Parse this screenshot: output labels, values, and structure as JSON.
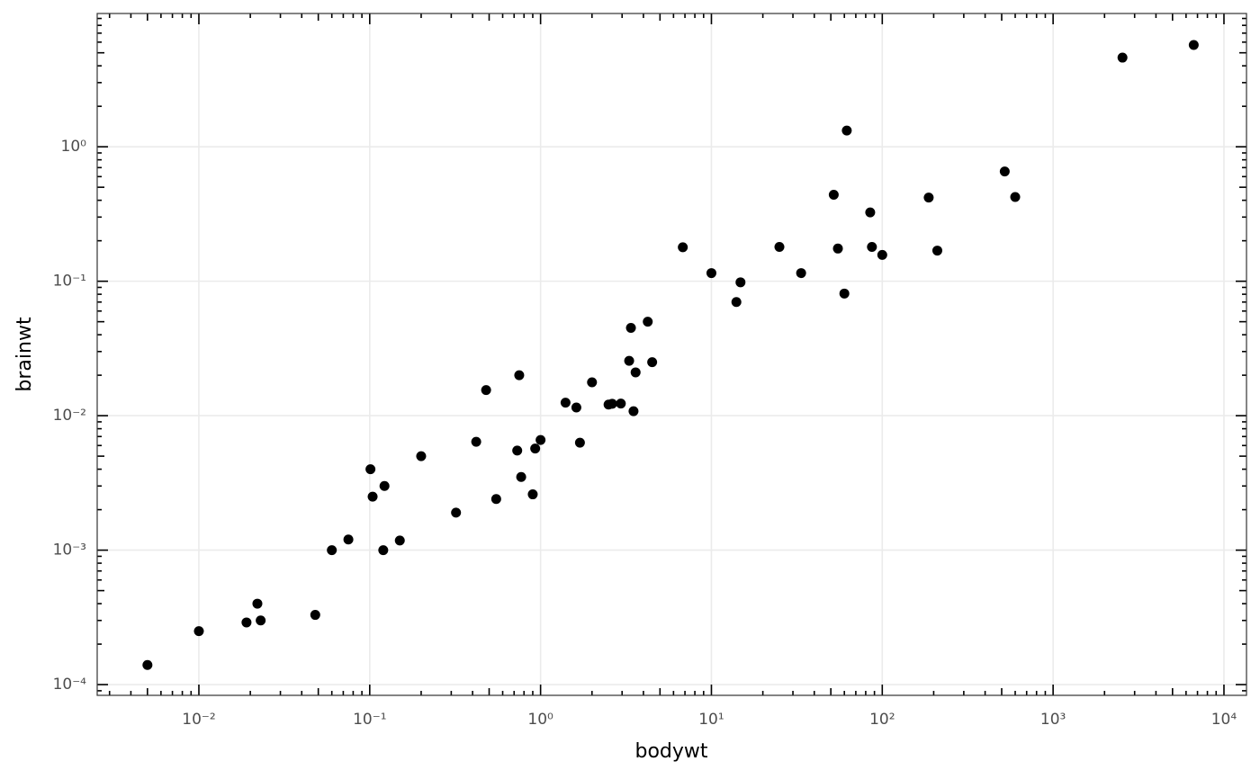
{
  "chart_data": {
    "type": "scatter",
    "x_label": "bodywt",
    "y_label": "brainwt",
    "log_x": true,
    "log_y": true,
    "grid": true,
    "color": "#000000",
    "xlim": [
      0.00254,
      13550
    ],
    "ylim": [
      8.32e-05,
      9.8
    ],
    "xticks": [
      {
        "value": 0.01,
        "label": "10⁻²"
      },
      {
        "value": 0.1,
        "label": "10⁻¹"
      },
      {
        "value": 1,
        "label": "10⁰"
      },
      {
        "value": 10,
        "label": "10¹"
      },
      {
        "value": 100,
        "label": "10²"
      },
      {
        "value": 1000,
        "label": "10³"
      },
      {
        "value": 10000,
        "label": "10⁴"
      }
    ],
    "yticks": [
      {
        "value": 0.0001,
        "label": "10⁻⁴"
      },
      {
        "value": 0.001,
        "label": "10⁻³"
      },
      {
        "value": 0.01,
        "label": "10⁻²"
      },
      {
        "value": 0.1,
        "label": "10⁻¹"
      },
      {
        "value": 1,
        "label": "10⁰"
      }
    ],
    "x_minor_ticks": [
      0.003,
      0.004,
      0.005,
      0.006,
      0.007,
      0.008,
      0.009,
      0.02,
      0.03,
      0.04,
      0.05,
      0.06,
      0.07,
      0.08,
      0.09,
      0.2,
      0.3,
      0.4,
      0.5,
      0.6,
      0.7,
      0.8,
      0.9,
      2,
      3,
      4,
      5,
      6,
      7,
      8,
      9,
      20,
      30,
      40,
      50,
      60,
      70,
      80,
      90,
      200,
      300,
      400,
      500,
      600,
      700,
      800,
      900,
      2000,
      3000,
      4000,
      5000,
      6000,
      7000,
      8000,
      9000
    ],
    "y_minor_ticks": [
      9e-05,
      0.0002,
      0.0003,
      0.0004,
      0.0005,
      0.0006,
      0.0007,
      0.0008,
      0.0009,
      0.002,
      0.003,
      0.004,
      0.005,
      0.006,
      0.007,
      0.008,
      0.009,
      0.02,
      0.03,
      0.04,
      0.05,
      0.06,
      0.07,
      0.08,
      0.09,
      0.2,
      0.3,
      0.4,
      0.5,
      0.6,
      0.7,
      0.8,
      0.9,
      2,
      3,
      4,
      5,
      6,
      7,
      8,
      9
    ],
    "x": [
      0.005,
      0.01,
      0.019,
      0.022,
      0.023,
      0.048,
      0.06,
      0.075,
      0.101,
      0.104,
      0.12,
      0.122,
      0.15,
      0.2,
      0.32,
      0.42,
      0.48,
      0.55,
      0.73,
      0.75,
      0.77,
      0.9,
      0.93,
      1,
      1.4,
      1.62,
      1.7,
      2,
      2.5,
      2.625,
      2.95,
      3.3,
      3.38,
      3.5,
      3.6,
      4.24,
      4.5,
      6.8,
      10,
      14,
      14.8,
      25,
      33.5,
      52,
      55,
      60,
      62,
      85,
      87,
      100,
      187,
      210,
      521,
      600,
      2547,
      6654
    ],
    "y": [
      0.00014,
      0.00025,
      0.00029,
      0.0004,
      0.0003,
      0.00033,
      0.001,
      0.0012,
      0.004,
      0.0025,
      0.001,
      0.003,
      0.00118,
      0.005,
      0.0019,
      0.0064,
      0.0155,
      0.0024,
      0.0055,
      0.02,
      0.0035,
      0.0026,
      0.0057,
      0.0066,
      0.0125,
      0.0115,
      0.0063,
      0.0177,
      0.0121,
      0.01227,
      0.0123,
      0.0256,
      0.045,
      0.0108,
      0.021,
      0.05,
      0.025,
      0.179,
      0.115,
      0.07,
      0.0982,
      0.18,
      0.115,
      0.44,
      0.175,
      0.081,
      1.32,
      0.325,
      0.18,
      0.157,
      0.419,
      0.169,
      0.655,
      0.423,
      4.603,
      5.712
    ]
  }
}
